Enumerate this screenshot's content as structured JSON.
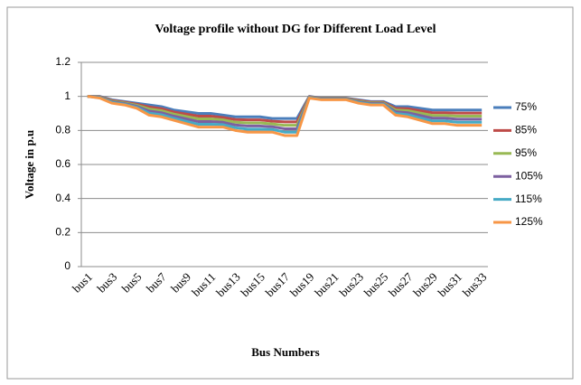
{
  "chart_data": {
    "type": "line",
    "title": "Voltage profile without DG  for Different Load Level",
    "y_label": "Voltage in p.u",
    "x_label": "Bus Numbers",
    "categories": [
      "bus1",
      null,
      "bus3",
      null,
      "bus5",
      null,
      "bus7",
      null,
      "bus9",
      null,
      "bus11",
      null,
      "bus13",
      null,
      "bus15",
      null,
      "bus17",
      null,
      "bus19",
      null,
      "bus21",
      null,
      "bus23",
      null,
      "bus25",
      null,
      "bus27",
      null,
      "bus29",
      null,
      "bus31",
      null,
      "bus33"
    ],
    "ylim": [
      0,
      1.2
    ],
    "yticks": [
      0,
      0.2,
      0.4,
      0.6,
      0.8,
      1,
      1.2
    ],
    "grid": true,
    "legend": "right",
    "series": [
      {
        "name": "75%",
        "color": "#4a7ebb",
        "values": [
          1,
          1,
          0.98,
          0.97,
          0.96,
          0.95,
          0.94,
          0.92,
          0.91,
          0.9,
          0.9,
          0.89,
          0.88,
          0.88,
          0.88,
          0.87,
          0.87,
          0.87,
          1,
          0.99,
          0.99,
          0.99,
          0.98,
          0.97,
          0.97,
          0.94,
          0.94,
          0.93,
          0.92,
          0.92,
          0.92,
          0.92,
          0.92
        ]
      },
      {
        "name": "85%",
        "color": "#be4b48",
        "values": [
          1,
          0.998,
          0.976,
          0.966,
          0.954,
          0.938,
          0.928,
          0.908,
          0.896,
          0.884,
          0.884,
          0.876,
          0.864,
          0.862,
          0.862,
          0.854,
          0.85,
          0.85,
          0.998,
          0.988,
          0.988,
          0.988,
          0.976,
          0.966,
          0.966,
          0.93,
          0.928,
          0.916,
          0.904,
          0.904,
          0.902,
          0.902,
          0.902
        ]
      },
      {
        "name": "95%",
        "color": "#98b954",
        "values": [
          1,
          0.996,
          0.972,
          0.962,
          0.948,
          0.926,
          0.916,
          0.896,
          0.882,
          0.868,
          0.868,
          0.862,
          0.848,
          0.844,
          0.844,
          0.838,
          0.83,
          0.83,
          0.996,
          0.986,
          0.986,
          0.986,
          0.972,
          0.962,
          0.962,
          0.92,
          0.916,
          0.902,
          0.888,
          0.888,
          0.884,
          0.884,
          0.884
        ]
      },
      {
        "name": "105%",
        "color": "#7d60a0",
        "values": [
          1,
          0.994,
          0.968,
          0.958,
          0.942,
          0.914,
          0.904,
          0.884,
          0.868,
          0.852,
          0.852,
          0.848,
          0.832,
          0.826,
          0.826,
          0.822,
          0.81,
          0.81,
          0.994,
          0.984,
          0.984,
          0.984,
          0.968,
          0.958,
          0.958,
          0.91,
          0.904,
          0.888,
          0.872,
          0.872,
          0.866,
          0.866,
          0.866
        ]
      },
      {
        "name": "115%",
        "color": "#46aac5",
        "values": [
          1,
          0.992,
          0.964,
          0.954,
          0.936,
          0.902,
          0.892,
          0.872,
          0.854,
          0.836,
          0.836,
          0.834,
          0.816,
          0.808,
          0.808,
          0.806,
          0.79,
          0.79,
          0.992,
          0.982,
          0.982,
          0.982,
          0.964,
          0.954,
          0.954,
          0.9,
          0.892,
          0.874,
          0.856,
          0.856,
          0.848,
          0.848,
          0.848
        ]
      },
      {
        "name": "125%",
        "color": "#f79646",
        "values": [
          1,
          0.99,
          0.96,
          0.95,
          0.93,
          0.89,
          0.88,
          0.86,
          0.84,
          0.82,
          0.82,
          0.82,
          0.8,
          0.79,
          0.79,
          0.79,
          0.77,
          0.77,
          0.99,
          0.98,
          0.98,
          0.98,
          0.96,
          0.95,
          0.95,
          0.89,
          0.88,
          0.86,
          0.84,
          0.84,
          0.83,
          0.83,
          0.83
        ]
      }
    ]
  }
}
